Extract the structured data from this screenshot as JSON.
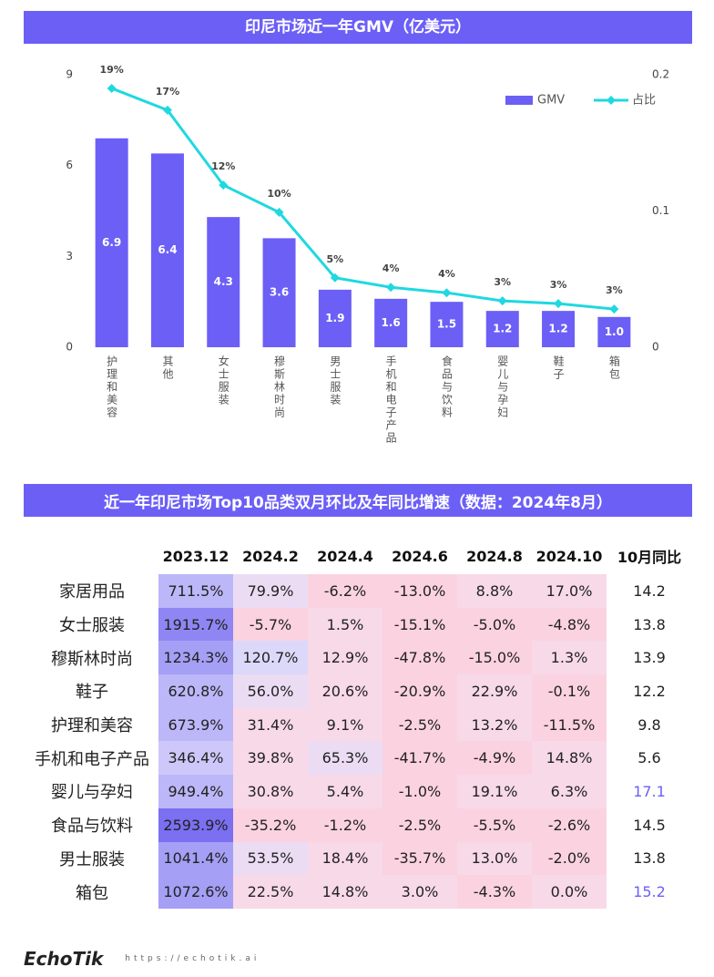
{
  "chart_data": {
    "type": "combo",
    "title": "印尼市场近一年GMV（亿美元）",
    "categories": [
      "护理和美容",
      "其他",
      "女士服装",
      "穆斯林时尚",
      "男士服装",
      "手机和电子产品",
      "食品与饮料",
      "婴儿与孕妇",
      "鞋子",
      "箱包"
    ],
    "series": [
      {
        "name": "GMV",
        "type": "bar",
        "color": "#6c5ff6",
        "values": [
          6.9,
          6.4,
          4.3,
          3.6,
          1.9,
          1.6,
          1.5,
          1.2,
          1.2,
          1.0
        ],
        "value_labels": [
          "6.9",
          "6.4",
          "4.3",
          "3.6",
          "1.9",
          "1.6",
          "1.5",
          "1.2",
          "1.2",
          "1.0"
        ]
      },
      {
        "name": "占比",
        "type": "line",
        "axis": "y2",
        "color": "#1fd8e0",
        "values": [
          0.19,
          0.174,
          0.119,
          0.099,
          0.051,
          0.044,
          0.04,
          0.034,
          0.032,
          0.028
        ],
        "value_labels": [
          "19%",
          "17%",
          "12%",
          "10%",
          "5%",
          "4%",
          "4%",
          "3%",
          "3%",
          "3%"
        ]
      }
    ],
    "ylim": [
      0,
      9
    ],
    "yticks": [
      0,
      3,
      6,
      9
    ],
    "y2lim": [
      0,
      0.2
    ],
    "y2ticks": [
      0,
      0.1,
      0.2
    ],
    "grid": false,
    "legend": "upper right"
  },
  "table": {
    "title": "近一年印尼市场Top10品类双月环比及年同比增速（数据：2024年8月）",
    "columns": [
      "2023.12",
      "2024.2",
      "2024.4",
      "2024.6",
      "2024.8",
      "2024.10",
      "10月同比"
    ],
    "rows": [
      {
        "name": "家居用品",
        "cells": [
          "711.5%",
          "79.9%",
          "-6.2%",
          "-13.0%",
          "8.8%",
          "17.0%",
          "14.2"
        ]
      },
      {
        "name": "女士服装",
        "cells": [
          "1915.7%",
          "-5.7%",
          "1.5%",
          "-15.1%",
          "-5.0%",
          "-4.8%",
          "13.8"
        ]
      },
      {
        "name": "穆斯林时尚",
        "cells": [
          "1234.3%",
          "120.7%",
          "12.9%",
          "-47.8%",
          "-15.0%",
          "1.3%",
          "13.9"
        ]
      },
      {
        "name": "鞋子",
        "cells": [
          "620.8%",
          "56.0%",
          "20.6%",
          "-20.9%",
          "22.9%",
          "-0.1%",
          "12.2"
        ]
      },
      {
        "name": "护理和美容",
        "cells": [
          "673.9%",
          "31.4%",
          "9.1%",
          "-2.5%",
          "13.2%",
          "-11.5%",
          "9.8"
        ]
      },
      {
        "name": "手机和电子产品",
        "cells": [
          "346.4%",
          "39.8%",
          "65.3%",
          "-41.7%",
          "-4.9%",
          "14.8%",
          "5.6"
        ]
      },
      {
        "name": "婴儿与孕妇",
        "cells": [
          "949.4%",
          "30.8%",
          "5.4%",
          "-1.0%",
          "19.1%",
          "6.3%",
          "17.1"
        ]
      },
      {
        "name": "食品与饮料",
        "cells": [
          "2593.9%",
          "-35.2%",
          "-1.2%",
          "-2.5%",
          "-5.5%",
          "-2.6%",
          "14.5"
        ]
      },
      {
        "name": "男士服装",
        "cells": [
          "1041.4%",
          "53.5%",
          "18.4%",
          "-35.7%",
          "13.0%",
          "-2.0%",
          "13.8"
        ]
      },
      {
        "name": "箱包",
        "cells": [
          "1072.6%",
          "22.5%",
          "14.8%",
          "3.0%",
          "-4.3%",
          "0.0%",
          "15.2"
        ]
      }
    ]
  },
  "footer": {
    "logo": "EchoTik",
    "url": "https://echotik.ai"
  }
}
